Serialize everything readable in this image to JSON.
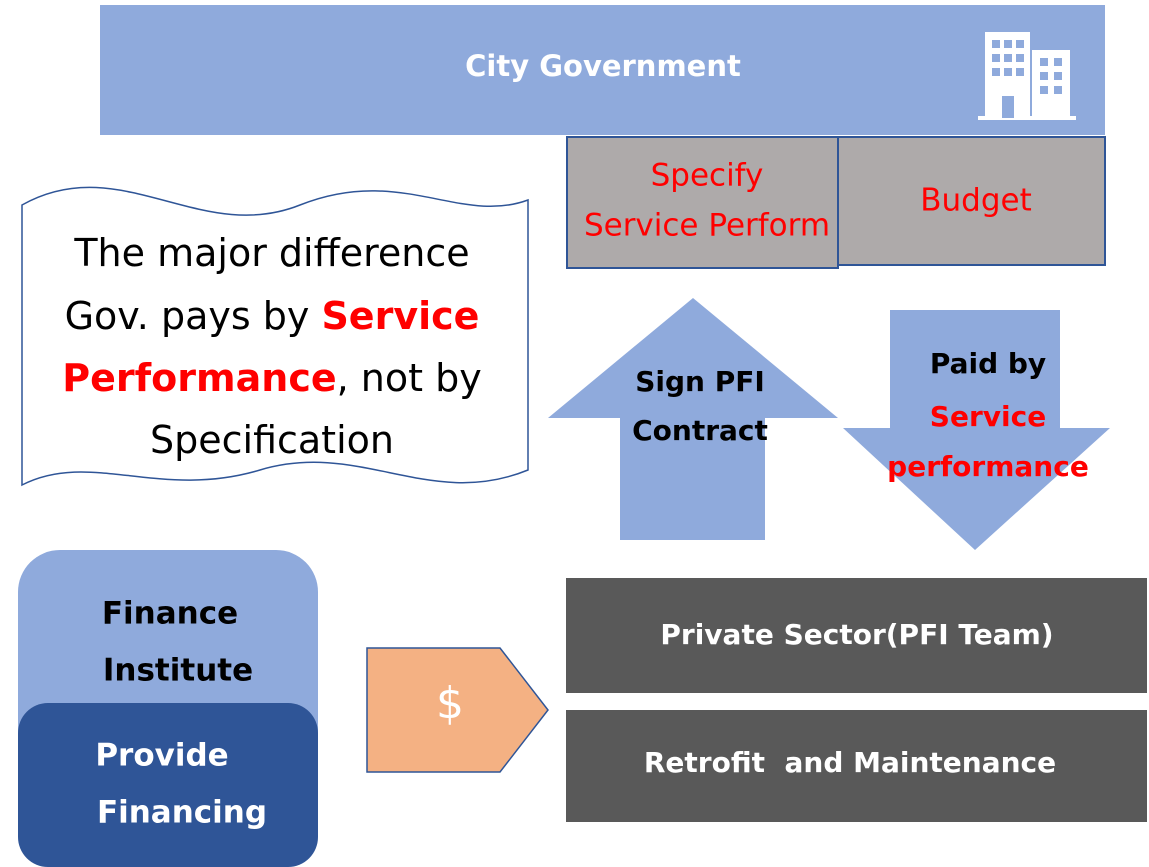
{
  "header": {
    "title": "City Government"
  },
  "spec_box": {
    "lines": [
      "Specify",
      "Service Perform"
    ]
  },
  "budget_box": {
    "label": "Budget"
  },
  "note": {
    "lines": [
      [
        {
          "text": "The major difference",
          "highlight": false
        }
      ],
      [
        {
          "text": "Gov. pays by ",
          "highlight": false
        },
        {
          "text": "Service",
          "highlight": true
        }
      ],
      [
        {
          "text": "Performance",
          "highlight": true
        },
        {
          "text": ", not by",
          "highlight": false
        }
      ],
      [
        {
          "text": "Specification",
          "highlight": false
        }
      ]
    ]
  },
  "up_arrow": {
    "lines": [
      "Sign PFI",
      "Contract"
    ]
  },
  "down_arrow": {
    "lines": [
      {
        "text": "Paid by",
        "highlight": false
      },
      {
        "text": "Service",
        "highlight": true
      },
      {
        "text": "performance",
        "highlight": true
      }
    ]
  },
  "finance_institute": {
    "lines": [
      "Finance",
      "Institute"
    ]
  },
  "provide_financing": {
    "lines": [
      "Provide",
      "Financing"
    ]
  },
  "money_tag": {
    "label": "$"
  },
  "private_sector": {
    "label": "Private Sector(PFI Team)"
  },
  "retrofit": {
    "label": "Retrofit  and Maintenance"
  }
}
